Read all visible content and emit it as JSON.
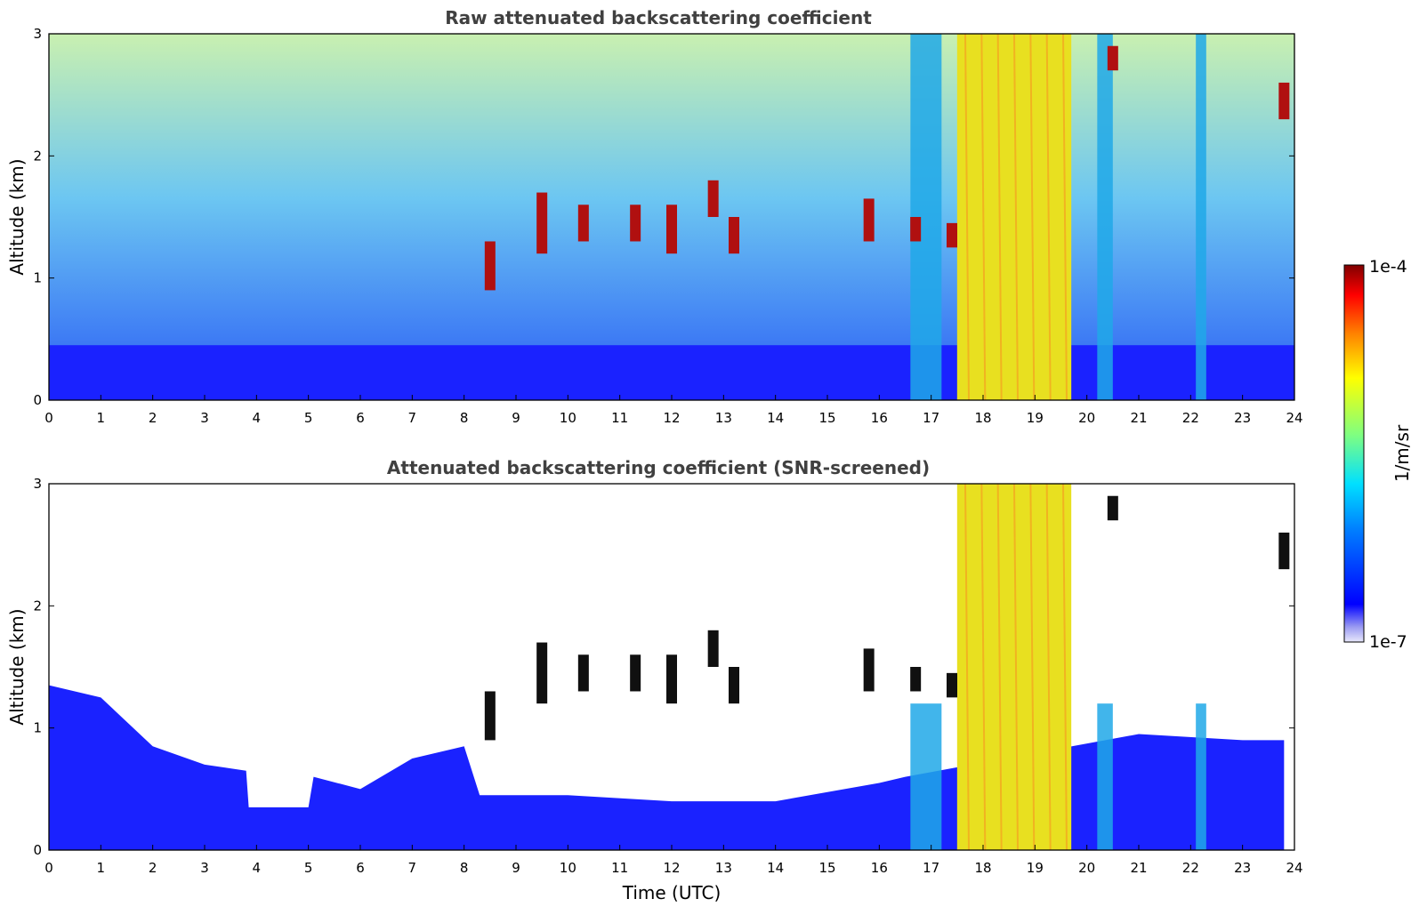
{
  "chart_data": [
    {
      "type": "heatmap",
      "title": "Raw attenuated backscattering coefficient",
      "ylabel": "Altitude (km)",
      "xlabel": "",
      "xlim": [
        0,
        24
      ],
      "ylim": [
        0,
        3
      ],
      "x_ticks": [
        "0",
        "1",
        "2",
        "3",
        "4",
        "5",
        "6",
        "7",
        "8",
        "9",
        "10",
        "11",
        "12",
        "13",
        "14",
        "15",
        "16",
        "17",
        "18",
        "19",
        "20",
        "21",
        "22",
        "23",
        "24"
      ],
      "y_ticks": [
        "0",
        "1",
        "2",
        "3"
      ],
      "features": {
        "boundary_layer_top_km": 0.45,
        "dense_layer": {
          "x": [
            17.5,
            19.7
          ],
          "y": [
            0,
            3
          ],
          "level": "high"
        },
        "precip_streaks": [
          {
            "x": [
              16.6,
              17.2
            ]
          },
          {
            "x": [
              20.2,
              20.5
            ]
          },
          {
            "x": [
              22.1,
              22.3
            ]
          }
        ],
        "cloud_patches": [
          {
            "x": 8.5,
            "y": [
              0.9,
              1.3
            ]
          },
          {
            "x": 9.5,
            "y": [
              1.2,
              1.7
            ]
          },
          {
            "x": 10.3,
            "y": [
              1.3,
              1.6
            ]
          },
          {
            "x": 11.3,
            "y": [
              1.3,
              1.6
            ]
          },
          {
            "x": 12.0,
            "y": [
              1.2,
              1.6
            ]
          },
          {
            "x": 12.8,
            "y": [
              1.5,
              1.8
            ]
          },
          {
            "x": 13.2,
            "y": [
              1.2,
              1.5
            ]
          },
          {
            "x": 15.8,
            "y": [
              1.3,
              1.65
            ]
          },
          {
            "x": 16.7,
            "y": [
              1.3,
              1.5
            ]
          },
          {
            "x": 17.4,
            "y": [
              1.25,
              1.45
            ]
          },
          {
            "x": 20.5,
            "y": [
              2.7,
              2.9
            ]
          },
          {
            "x": 23.8,
            "y": [
              2.3,
              2.6
            ]
          }
        ]
      }
    },
    {
      "type": "heatmap",
      "title": "Attenuated backscattering coefficient (SNR-screened)",
      "ylabel": "Altitude (km)",
      "xlabel": "Time (UTC)",
      "xlim": [
        0,
        24
      ],
      "ylim": [
        0,
        3
      ],
      "x_ticks": [
        "0",
        "1",
        "2",
        "3",
        "4",
        "5",
        "6",
        "7",
        "8",
        "9",
        "10",
        "11",
        "12",
        "13",
        "14",
        "15",
        "16",
        "17",
        "18",
        "19",
        "20",
        "21",
        "22",
        "23",
        "24"
      ],
      "y_ticks": [
        "0",
        "1",
        "2",
        "3"
      ],
      "boundary_layer_top_km": [
        [
          0,
          1.35
        ],
        [
          1,
          1.25
        ],
        [
          2,
          0.85
        ],
        [
          3,
          0.7
        ],
        [
          3.8,
          0.65
        ],
        [
          3.85,
          0.35
        ],
        [
          5.0,
          0.35
        ],
        [
          5.1,
          0.6
        ],
        [
          6,
          0.5
        ],
        [
          7,
          0.75
        ],
        [
          8,
          0.85
        ],
        [
          8.3,
          0.45
        ],
        [
          10,
          0.45
        ],
        [
          12,
          0.4
        ],
        [
          14,
          0.4
        ],
        [
          16,
          0.55
        ],
        [
          16.5,
          0.6
        ],
        [
          21,
          0.95
        ],
        [
          23,
          0.9
        ],
        [
          23.8,
          0.9
        ]
      ]
    }
  ],
  "colorbar": {
    "label": "1/m/sr",
    "max_label": "1e-4",
    "min_label": "1e-7",
    "scale": "log",
    "colormap": "jet"
  }
}
